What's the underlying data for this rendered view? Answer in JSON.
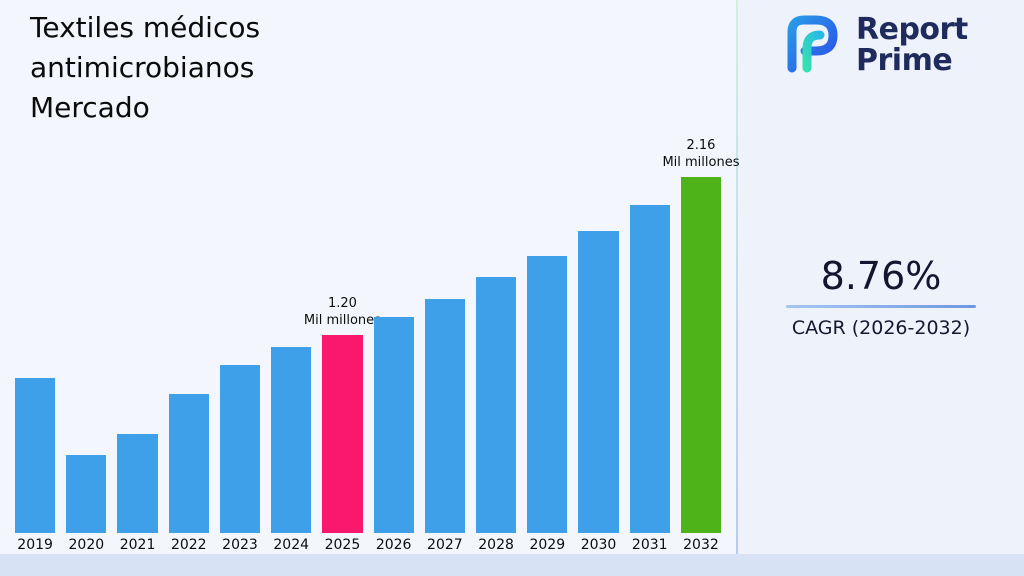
{
  "page": {
    "title": "Textiles médicos\nantimicrobianos\nMercado"
  },
  "logo": {
    "name_line1": "Report",
    "name_line2": "Prime",
    "navy": "#1f2b5c",
    "teal": "#35e0b0",
    "blue": "#2a6be8"
  },
  "stat": {
    "value": "8.76%",
    "label": "CAGR (2026-2032)"
  },
  "chart_data": {
    "type": "bar",
    "title": "Textiles médicos antimicrobianos Mercado",
    "unit": "Mil millones",
    "categories": [
      "2019",
      "2020",
      "2021",
      "2022",
      "2023",
      "2024",
      "2025",
      "2026",
      "2027",
      "2028",
      "2029",
      "2030",
      "2031",
      "2032"
    ],
    "values": [
      0.94,
      0.47,
      0.6,
      0.84,
      1.02,
      1.13,
      1.2,
      1.31,
      1.42,
      1.55,
      1.68,
      1.83,
      1.99,
      2.16
    ],
    "ylim": [
      0,
      2.2
    ],
    "grid": false,
    "legend": "none",
    "annotations": [
      {
        "category": "2025",
        "label": "1.20\nMil millones"
      },
      {
        "category": "2032",
        "label": "2.16\nMil millones"
      }
    ],
    "bar_colors": {
      "default": "#3da0e8",
      "2025": "#f9186e",
      "2032": "#4eb319"
    }
  }
}
